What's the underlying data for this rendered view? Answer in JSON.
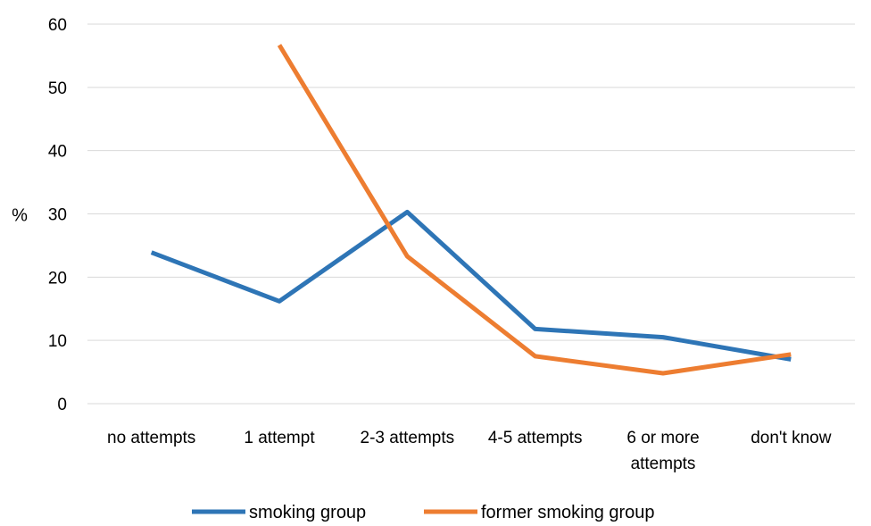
{
  "chart_data": {
    "type": "line",
    "title": "",
    "xlabel": "",
    "ylabel": "%",
    "ylim": [
      0,
      60
    ],
    "yticks": [
      0,
      10,
      20,
      30,
      40,
      50,
      60
    ],
    "grid": true,
    "legend_position": "bottom",
    "categories": [
      [
        "no attempts"
      ],
      [
        "1 attempt"
      ],
      [
        "2-3  attempts"
      ],
      [
        "4-5 attempts"
      ],
      [
        "6 or more",
        "attempts"
      ],
      [
        "don't know"
      ]
    ],
    "series": [
      {
        "name": "smoking group",
        "color": "#2e75b6",
        "values": [
          23.9,
          16.2,
          30.3,
          11.8,
          10.5,
          7.0
        ]
      },
      {
        "name": "former smoking group",
        "color": "#ed7d31",
        "values": [
          null,
          56.7,
          23.3,
          7.5,
          4.8,
          7.8
        ]
      }
    ]
  }
}
